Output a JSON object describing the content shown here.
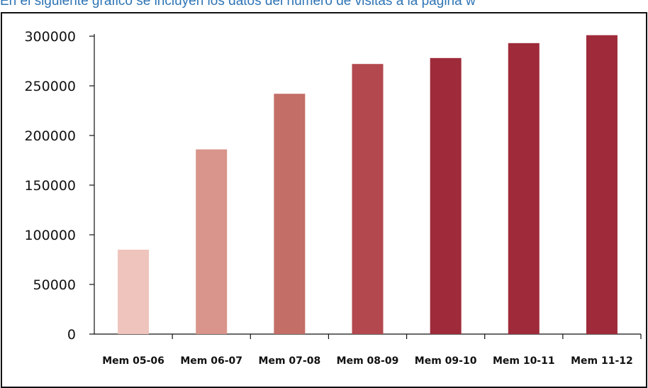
{
  "caption": "En el siguiente gráfico se incluyen los datos del número de visitas a la página w",
  "chart_data": {
    "type": "bar",
    "title": "",
    "xlabel": "",
    "ylabel": "",
    "categories": [
      "Mem 05-06",
      "Mem 06-07",
      "Mem 07-08",
      "Mem 08-09",
      "Mem 09-10",
      "Mem 10-11",
      "Mem 11-12"
    ],
    "values": [
      85000,
      186000,
      242000,
      272000,
      278000,
      293000,
      301000
    ],
    "ylim": [
      0,
      300000
    ],
    "yticks": [
      0,
      50000,
      100000,
      150000,
      200000,
      250000,
      300000
    ],
    "ytick_labels": [
      "0",
      "50000",
      "100000",
      "150000",
      "200000",
      "250000",
      "300000"
    ],
    "grid": false,
    "bar_colors": [
      "#eec4bc",
      "#d9958b",
      "#c46e68",
      "#b3484e",
      "#9e2a3a",
      "#9e2a3a",
      "#9e2a3a"
    ]
  }
}
